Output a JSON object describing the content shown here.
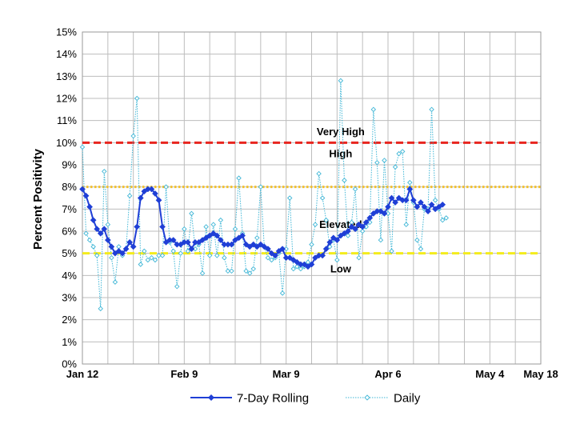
{
  "chart_data": {
    "type": "line",
    "ylabel": "Percent Positivity",
    "xlabel": "",
    "x_start_label": "Jan 12",
    "x_days": 126,
    "xlim_days": [
      0,
      126
    ],
    "ylim": [
      0,
      15
    ],
    "y_ticks": [
      "0%",
      "1%",
      "2%",
      "3%",
      "4%",
      "5%",
      "6%",
      "7%",
      "8%",
      "9%",
      "10%",
      "11%",
      "12%",
      "13%",
      "14%",
      "15%"
    ],
    "x_tick_labels": [
      {
        "label": "Jan 12",
        "day": 0
      },
      {
        "label": "Feb 9",
        "day": 28
      },
      {
        "label": "Mar 9",
        "day": 56
      },
      {
        "label": "Apr 6",
        "day": 84
      },
      {
        "label": "May 4",
        "day": 112
      },
      {
        "label": "May 18",
        "day": 126
      }
    ],
    "grid": true,
    "legend_position": "bottom",
    "thresholds": [
      {
        "value": 10,
        "color": "#e8251f",
        "style": "dashed"
      },
      {
        "value": 8,
        "color": "#f2c12e",
        "style": "dotted"
      },
      {
        "value": 5,
        "color": "#f4ec1c",
        "style": "dashed"
      }
    ],
    "zones": [
      {
        "label": "Very High",
        "y": 10.5
      },
      {
        "label": "High",
        "y": 9.5
      },
      {
        "label": "Elevated",
        "y": 6.3
      },
      {
        "label": "Low",
        "y": 4.3
      }
    ],
    "series": [
      {
        "name": "7-Day Rolling",
        "color": "#1f3fd6",
        "values": [
          7.9,
          7.6,
          7.1,
          6.5,
          6.1,
          5.9,
          6.1,
          5.6,
          5.3,
          5.0,
          5.1,
          5.0,
          5.2,
          5.5,
          5.3,
          6.2,
          7.5,
          7.8,
          7.9,
          7.9,
          7.7,
          7.4,
          6.2,
          5.5,
          5.6,
          5.6,
          5.4,
          5.4,
          5.5,
          5.5,
          5.2,
          5.5,
          5.5,
          5.6,
          5.7,
          5.8,
          5.9,
          5.8,
          5.6,
          5.4,
          5.4,
          5.4,
          5.6,
          5.7,
          5.8,
          5.4,
          5.3,
          5.4,
          5.3,
          5.4,
          5.3,
          5.2,
          5.0,
          4.9,
          5.1,
          5.2,
          4.8,
          4.8,
          4.7,
          4.6,
          4.5,
          4.5,
          4.4,
          4.5,
          4.8,
          4.9,
          4.9,
          5.2,
          5.5,
          5.7,
          5.6,
          5.8,
          5.9,
          6.0,
          6.2,
          6.1,
          6.3,
          6.2,
          6.4,
          6.6,
          6.8,
          6.9,
          6.9,
          6.8,
          7.1,
          7.5,
          7.3,
          7.5,
          7.4,
          7.4,
          7.9,
          7.4,
          7.1,
          7.3,
          7.1,
          6.9,
          7.2,
          7.0,
          7.1,
          7.2
        ]
      },
      {
        "name": "Daily",
        "color": "#3fb6d6",
        "values": [
          9.8,
          5.9,
          5.6,
          5.3,
          4.9,
          2.5,
          8.7,
          6.3,
          4.8,
          3.7,
          5.3,
          4.9,
          5.2,
          7.6,
          10.3,
          12.0,
          4.5,
          5.1,
          4.7,
          4.8,
          4.7,
          4.9,
          4.9,
          8.0,
          5.5,
          5.1,
          3.5,
          5.0,
          6.1,
          5.1,
          6.8,
          5.2,
          5.4,
          4.1,
          6.2,
          4.9,
          6.3,
          4.9,
          6.5,
          4.8,
          4.2,
          4.2,
          6.1,
          8.4,
          5.9,
          4.2,
          4.1,
          4.3,
          5.7,
          8.0,
          5.3,
          4.8,
          4.7,
          4.8,
          5.0,
          3.2,
          5.2,
          7.5,
          4.3,
          4.4,
          4.3,
          4.4,
          4.6,
          5.4,
          6.3,
          8.6,
          7.5,
          6.5,
          5.3,
          5.6,
          4.7,
          12.8,
          8.3,
          5.8,
          6.4,
          7.9,
          4.8,
          6.0,
          6.2,
          6.4,
          11.5,
          9.1,
          5.6,
          9.2,
          6.8,
          5.1,
          8.9,
          9.5,
          9.6,
          6.3,
          8.2,
          7.3,
          5.6,
          5.2,
          7.0,
          7.0,
          11.5,
          7.4,
          7.0,
          6.5,
          6.6
        ]
      }
    ]
  }
}
